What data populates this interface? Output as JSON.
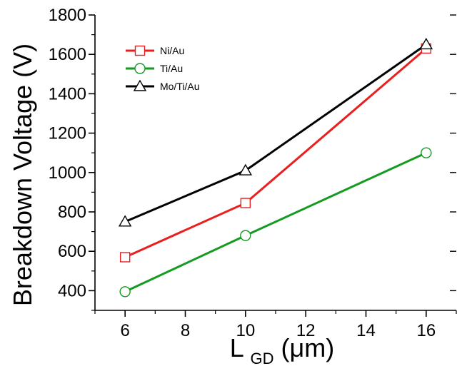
{
  "chart_data": {
    "type": "line",
    "title": "",
    "ylabel": "Breakdown Voltage (V)",
    "xlabel": {
      "main": "L",
      "subscript": "GD",
      "unit": " (μm)"
    },
    "x": [
      6,
      10,
      16
    ],
    "xlim": [
      5,
      17
    ],
    "ylim": [
      300,
      1800
    ],
    "xticks": [
      6,
      8,
      10,
      12,
      14,
      16
    ],
    "yticks": [
      400,
      600,
      800,
      1000,
      1200,
      1400,
      1600,
      1800
    ],
    "grid": false,
    "legend_position": "top-left",
    "series": [
      {
        "name": "Ni/Au",
        "values": [
          570,
          845,
          1630
        ],
        "color": "#e8201f",
        "marker": "square"
      },
      {
        "name": "Ti/Au",
        "values": [
          395,
          680,
          1100
        ],
        "color": "#159a22",
        "marker": "circle"
      },
      {
        "name": "Mo/Ti/Au",
        "values": [
          750,
          1010,
          1650
        ],
        "color": "#000000",
        "marker": "triangle"
      }
    ]
  }
}
